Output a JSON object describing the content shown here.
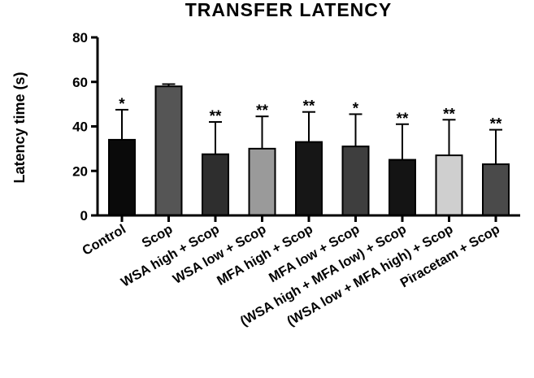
{
  "chart_data": {
    "type": "bar",
    "title": "TRANSFER LATENCY",
    "xlabel": "",
    "ylabel": "Latency time (s)",
    "ylim": [
      0,
      80
    ],
    "yticks": [
      "0",
      "20",
      "40",
      "60",
      "80"
    ],
    "grid": false,
    "categories": [
      "Control",
      "Scop",
      "WSA high + Scop",
      "WSA low + Scop",
      "MFA high + Scop",
      "MFA low + Scop",
      "(WSA high + MFA low) + Scop",
      "(WSA low + MFA high) + Scop",
      "Piracetam + Scop"
    ],
    "values": [
      34,
      58,
      27.5,
      30,
      33,
      31,
      25,
      27,
      23
    ],
    "error_upper": [
      13.5,
      1,
      14.5,
      14.5,
      13.5,
      14.5,
      16,
      16,
      15.5
    ],
    "significance": [
      "*",
      "",
      "**",
      "**",
      "**",
      "*",
      "**",
      "**",
      "**"
    ],
    "bar_colors": [
      "#0a0a0a",
      "#555555",
      "#2e2e2e",
      "#9a9a9a",
      "#161616",
      "#3e3e3e",
      "#141414",
      "#cfcfcf",
      "#4a4a4a"
    ]
  }
}
